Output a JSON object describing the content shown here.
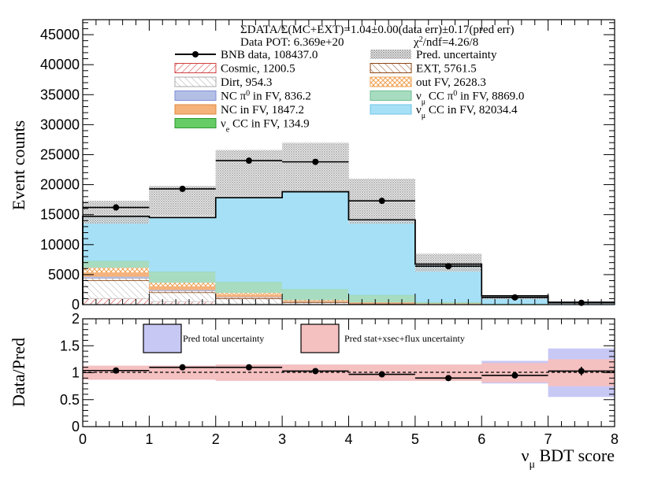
{
  "chart_data": [
    {
      "type": "bar",
      "stacked": true,
      "bin_edges": [
        0,
        1,
        2,
        3,
        4,
        5,
        6,
        7,
        8
      ],
      "ylabel": "Event counts",
      "ylim": [
        0,
        47500
      ],
      "yticks": [
        0,
        5000,
        10000,
        15000,
        20000,
        25000,
        30000,
        35000,
        40000,
        45000
      ],
      "ytick_labels": [
        "0",
        "5000",
        "10000",
        "15000",
        "20000",
        "25000",
        "30000",
        "35000",
        "40000",
        "45000"
      ],
      "header": {
        "ratio_text": "ΣDATA/Σ(MC+EXT)=1.04±0.00(data err)±0.17(pred err)",
        "pot_text": "Data POT: 6.369e+20",
        "chi2_prefix": "χ",
        "chi2_sup": "2",
        "chi2_suffix": "/ndf=4.26/8"
      },
      "series": [
        {
          "name": "Cosmic, 1200.5",
          "color": "#e06666",
          "pattern": "hatch-red",
          "values": [
            1000,
            500,
            100,
            50,
            30,
            20,
            10,
            5
          ]
        },
        {
          "name": "Dirt, 954.3",
          "color": "#cccccc",
          "pattern": "hatch-grey",
          "values": [
            3000,
            1500,
            900,
            300,
            100,
            50,
            20,
            10
          ]
        },
        {
          "name": "EXT, 5761.5",
          "color": "#8b4513",
          "pattern": "hatch-brown",
          "values": [
            400,
            300,
            200,
            100,
            80,
            50,
            30,
            20
          ]
        },
        {
          "name": "NC π⁰ in FV,  836.2",
          "color": "#b4bfe6",
          "values": [
            300,
            200,
            100,
            50,
            30,
            20,
            10,
            5
          ]
        },
        {
          "name": "NC in FV, 1847.2",
          "color": "#f5b27a",
          "values": [
            600,
            500,
            300,
            100,
            80,
            40,
            20,
            10
          ]
        },
        {
          "name": "out FV, 2628.3",
          "color": "#f5b27a",
          "pattern": "hatch-orange",
          "values": [
            900,
            700,
            400,
            200,
            100,
            50,
            20,
            10
          ]
        },
        {
          "name": "νμ CC π⁰ in FV, 8869.0",
          "color": "#a8dcc0",
          "values": [
            1100,
            1800,
            1800,
            1800,
            1200,
            200,
            50,
            20
          ]
        },
        {
          "name": "νe CC in FV, 134.9",
          "color": "#66cc66",
          "values": [
            20,
            20,
            20,
            20,
            20,
            20,
            10,
            5
          ]
        },
        {
          "name": "νμ CC in FV, 82034.4",
          "color": "#a6e0f7",
          "values": [
            7400,
            9000,
            14000,
            16200,
            12500,
            6300,
            1300,
            300
          ]
        }
      ],
      "pred_uncertainty": {
        "name": "Pred. uncertainty",
        "low": [
          13500,
          14800,
          18000,
          19000,
          13500,
          5500,
          900,
          100
        ],
        "high": [
          17300,
          19800,
          25800,
          27000,
          21000,
          8500,
          1600,
          600
        ]
      },
      "data": {
        "name": "BNB data, 108437.0",
        "values": [
          16200,
          19300,
          24000,
          23800,
          17300,
          6400,
          1200,
          300
        ]
      },
      "legend_rows": [
        {
          "left": {
            "label": "BNB data, 108437.0",
            "kind": "data"
          },
          "right": {
            "label": "Pred. uncertainty",
            "kind": "dots"
          }
        },
        {
          "left": {
            "label": "Cosmic, 1200.5",
            "kind": "hatch-red"
          },
          "right": {
            "label": "EXT, 5761.5",
            "kind": "hatch-brown"
          }
        },
        {
          "left": {
            "label": "Dirt, 954.3",
            "kind": "hatch-grey"
          },
          "right": {
            "label": "out FV, 2628.3",
            "kind": "hatch-orange"
          }
        },
        {
          "left": {
            "label_html": "NC π<tspan baseline-shift=\"super\" font-size=\"10\">0</tspan> in FV,  836.2",
            "kind": "fill",
            "color": "#b4bfe6",
            "stroke": "#7e8fd6"
          },
          "right": {
            "label_html": "ν<tspan baseline-shift=\"sub\" font-size=\"10\">μ</tspan> CC π<tspan baseline-shift=\"super\" font-size=\"10\">0</tspan> in FV, 8869.0",
            "kind": "fill",
            "color": "#a8dcc0",
            "stroke": "#6fbf93"
          }
        },
        {
          "left": {
            "label": "NC in FV, 1847.2",
            "kind": "fill",
            "color": "#f5b27a",
            "stroke": "#e08a3c"
          },
          "right": {
            "label_html": "ν<tspan baseline-shift=\"sub\" font-size=\"10\">μ</tspan> CC in FV, 82034.4",
            "kind": "fill",
            "color": "#a6e0f7",
            "stroke": "#6fc3e6"
          }
        },
        {
          "left": {
            "label_html": "ν<tspan baseline-shift=\"sub\" font-size=\"10\">e</tspan> CC in FV, 134.9",
            "kind": "fill",
            "color": "#66cc66",
            "stroke": "#2e9a2e"
          },
          "right": null
        }
      ]
    },
    {
      "type": "line",
      "bin_edges": [
        0,
        1,
        2,
        3,
        4,
        5,
        6,
        7,
        8
      ],
      "ylabel": "Data/Pred",
      "xlabel": "νμ BDT score",
      "xlabel_main": "ν",
      "xlabel_sub": "μ",
      "xlabel_rest": " BDT score",
      "ylim": [
        0,
        2
      ],
      "xticks": [
        0,
        1,
        2,
        3,
        4,
        5,
        6,
        7,
        8
      ],
      "xtick_labels": [
        "0",
        "1",
        "2",
        "3",
        "4",
        "5",
        "6",
        "7",
        "8"
      ],
      "yticks": [
        0,
        0.5,
        1,
        1.5,
        2
      ],
      "ytick_labels": [
        "0",
        "0.5",
        "1",
        "1.5",
        "2"
      ],
      "ratio": [
        1.04,
        1.1,
        1.1,
        1.03,
        0.97,
        0.9,
        0.95,
        1.03
      ],
      "ratio_err": [
        0.01,
        0.01,
        0.01,
        0.01,
        0.01,
        0.02,
        0.03,
        0.08
      ],
      "total_unc_low": [
        0.87,
        0.87,
        0.85,
        0.85,
        0.85,
        0.85,
        0.8,
        0.55
      ],
      "total_unc_high": [
        1.13,
        1.13,
        1.15,
        1.15,
        1.15,
        1.15,
        1.22,
        1.45
      ],
      "stat_unc_low": [
        0.87,
        0.87,
        0.85,
        0.85,
        0.85,
        0.85,
        0.82,
        0.75
      ],
      "stat_unc_high": [
        1.13,
        1.13,
        1.15,
        1.15,
        1.15,
        1.15,
        1.18,
        1.25
      ],
      "legend": [
        {
          "label": "Pred total uncertainty",
          "color": "#c8c8f5"
        },
        {
          "label": "Pred stat+xsec+flux uncertainty",
          "color": "#f5c0c0"
        }
      ]
    }
  ]
}
